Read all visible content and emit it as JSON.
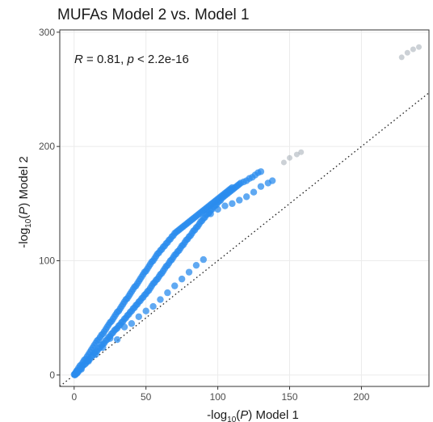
{
  "chart_data": {
    "type": "scatter",
    "title": "MUFAs Model 2 vs. Model 1",
    "xlabel": {
      "prefix": "-log",
      "sub": "10",
      "open": "(",
      "var": "P",
      "close": ")",
      "suffix": " Model 1"
    },
    "ylabel": {
      "prefix": "-log",
      "sub": "10",
      "open": "(",
      "var": "P",
      "close": ")",
      "suffix": " Model 2"
    },
    "annotation": {
      "r_symbol": "R",
      "r_text": " = 0.81, ",
      "p_symbol": "p",
      "p_text": " < 2.2e-16"
    },
    "xlim": [
      -10,
      247
    ],
    "ylim": [
      -10,
      302
    ],
    "x_ticks": [
      0,
      50,
      100,
      150,
      200
    ],
    "y_ticks": [
      0,
      100,
      200,
      300
    ],
    "grid": true,
    "reference_line": {
      "slope": 1,
      "intercept": 0,
      "style": "dotted"
    },
    "point_color": "#2b8cee",
    "faint_point_color": "#9aa3ad",
    "points": [
      [
        0.5,
        1
      ],
      [
        1,
        2
      ],
      [
        1.5,
        3
      ],
      [
        2,
        2
      ],
      [
        2,
        4
      ],
      [
        3,
        4
      ],
      [
        3,
        6
      ],
      [
        4,
        5
      ],
      [
        4,
        8
      ],
      [
        5,
        6
      ],
      [
        5,
        9
      ],
      [
        6,
        8
      ],
      [
        6,
        11
      ],
      [
        7,
        9
      ],
      [
        7,
        13
      ],
      [
        8,
        10
      ],
      [
        8,
        14
      ],
      [
        9,
        12
      ],
      [
        9,
        16
      ],
      [
        10,
        13
      ],
      [
        10,
        18
      ],
      [
        11,
        14
      ],
      [
        11,
        20
      ],
      [
        12,
        16
      ],
      [
        12,
        22
      ],
      [
        13,
        17
      ],
      [
        13,
        24
      ],
      [
        14,
        19
      ],
      [
        14,
        26
      ],
      [
        15,
        20
      ],
      [
        15,
        28
      ],
      [
        16,
        21
      ],
      [
        16,
        30
      ],
      [
        17,
        23
      ],
      [
        17,
        31
      ],
      [
        18,
        24
      ],
      [
        18,
        33
      ],
      [
        19,
        26
      ],
      [
        19,
        35
      ],
      [
        20,
        27
      ],
      [
        20,
        36
      ],
      [
        21,
        28
      ],
      [
        21,
        38
      ],
      [
        22,
        30
      ],
      [
        22,
        40
      ],
      [
        23,
        31
      ],
      [
        23,
        42
      ],
      [
        24,
        33
      ],
      [
        24,
        44
      ],
      [
        25,
        34
      ],
      [
        25,
        46
      ],
      [
        26,
        36
      ],
      [
        26,
        47
      ],
      [
        27,
        37
      ],
      [
        27,
        49
      ],
      [
        28,
        39
      ],
      [
        28,
        51
      ],
      [
        29,
        40
      ],
      [
        29,
        53
      ],
      [
        30,
        41
      ],
      [
        30,
        55
      ],
      [
        31,
        43
      ],
      [
        31,
        56
      ],
      [
        32,
        44
      ],
      [
        32,
        58
      ],
      [
        33,
        46
      ],
      [
        33,
        60
      ],
      [
        34,
        47
      ],
      [
        34,
        62
      ],
      [
        35,
        49
      ],
      [
        35,
        64
      ],
      [
        36,
        50
      ],
      [
        36,
        66
      ],
      [
        37,
        52
      ],
      [
        37,
        67
      ],
      [
        38,
        53
      ],
      [
        38,
        69
      ],
      [
        39,
        55
      ],
      [
        39,
        71
      ],
      [
        40,
        56
      ],
      [
        40,
        73
      ],
      [
        41,
        58
      ],
      [
        41,
        75
      ],
      [
        42,
        59
      ],
      [
        42,
        77
      ],
      [
        43,
        61
      ],
      [
        43,
        78
      ],
      [
        44,
        62
      ],
      [
        44,
        80
      ],
      [
        45,
        64
      ],
      [
        45,
        82
      ],
      [
        46,
        65
      ],
      [
        46,
        84
      ],
      [
        47,
        67
      ],
      [
        47,
        86
      ],
      [
        48,
        68
      ],
      [
        48,
        88
      ],
      [
        49,
        70
      ],
      [
        49,
        90
      ],
      [
        50,
        71
      ],
      [
        50,
        91
      ],
      [
        51,
        73
      ],
      [
        51,
        93
      ],
      [
        52,
        74
      ],
      [
        52,
        95
      ],
      [
        53,
        76
      ],
      [
        53,
        97
      ],
      [
        54,
        78
      ],
      [
        54,
        99
      ],
      [
        55,
        80
      ],
      [
        55,
        100
      ],
      [
        56,
        81
      ],
      [
        56,
        102
      ],
      [
        57,
        83
      ],
      [
        57,
        104
      ],
      [
        58,
        84
      ],
      [
        58,
        106
      ],
      [
        59,
        86
      ],
      [
        59,
        107
      ],
      [
        60,
        88
      ],
      [
        60,
        109
      ],
      [
        61,
        89
      ],
      [
        61,
        110
      ],
      [
        62,
        91
      ],
      [
        62,
        112
      ],
      [
        63,
        93
      ],
      [
        63,
        113
      ],
      [
        64,
        95
      ],
      [
        64,
        115
      ],
      [
        65,
        96
      ],
      [
        65,
        116
      ],
      [
        66,
        98
      ],
      [
        66,
        118
      ],
      [
        67,
        100
      ],
      [
        67,
        119
      ],
      [
        68,
        101
      ],
      [
        68,
        121
      ],
      [
        69,
        103
      ],
      [
        69,
        122
      ],
      [
        70,
        105
      ],
      [
        70,
        124
      ],
      [
        71,
        106
      ],
      [
        71,
        125
      ],
      [
        72,
        108
      ],
      [
        72,
        126
      ],
      [
        73,
        109
      ],
      [
        73,
        127
      ],
      [
        74,
        111
      ],
      [
        74,
        128
      ],
      [
        75,
        113
      ],
      [
        75,
        129
      ],
      [
        76,
        114
      ],
      [
        76,
        130
      ],
      [
        77,
        116
      ],
      [
        77,
        131
      ],
      [
        78,
        118
      ],
      [
        78,
        132
      ],
      [
        79,
        119
      ],
      [
        79,
        133
      ],
      [
        80,
        121
      ],
      [
        80,
        134
      ],
      [
        81,
        122
      ],
      [
        81,
        135
      ],
      [
        82,
        124
      ],
      [
        82,
        136
      ],
      [
        83,
        126
      ],
      [
        83,
        137
      ],
      [
        84,
        127
      ],
      [
        84,
        138
      ],
      [
        85,
        129
      ],
      [
        85,
        139
      ],
      [
        86,
        130
      ],
      [
        86,
        140
      ],
      [
        87,
        132
      ],
      [
        87,
        141
      ],
      [
        88,
        134
      ],
      [
        88,
        142
      ],
      [
        89,
        135
      ],
      [
        89,
        143
      ],
      [
        90,
        137
      ],
      [
        90,
        144
      ],
      [
        91,
        138
      ],
      [
        91,
        145
      ],
      [
        92,
        140
      ],
      [
        92,
        146
      ],
      [
        93,
        141
      ],
      [
        93,
        147
      ],
      [
        94,
        142
      ],
      [
        94,
        148
      ],
      [
        95,
        144
      ],
      [
        95,
        149
      ],
      [
        96,
        145
      ],
      [
        96,
        150
      ],
      [
        97,
        147
      ],
      [
        97,
        151
      ],
      [
        98,
        148
      ],
      [
        98,
        152
      ],
      [
        99,
        149
      ],
      [
        99,
        153
      ],
      [
        100,
        151
      ],
      [
        100,
        154
      ],
      [
        101,
        152
      ],
      [
        101,
        155
      ],
      [
        102,
        153
      ],
      [
        102,
        156
      ],
      [
        103,
        155
      ],
      [
        103,
        157
      ],
      [
        104,
        156
      ],
      [
        104,
        158
      ],
      [
        105,
        157
      ],
      [
        105,
        159
      ],
      [
        106,
        158
      ],
      [
        106,
        160
      ],
      [
        107,
        159
      ],
      [
        107,
        161
      ],
      [
        108,
        160
      ],
      [
        108,
        162
      ],
      [
        109,
        161
      ],
      [
        109,
        163
      ],
      [
        110,
        162
      ],
      [
        110,
        164
      ],
      [
        111,
        163
      ],
      [
        112,
        164
      ],
      [
        113,
        165
      ],
      [
        114,
        166
      ],
      [
        115,
        167
      ],
      [
        116,
        168
      ],
      [
        118,
        169
      ],
      [
        120,
        170
      ],
      [
        122,
        172
      ],
      [
        124,
        173
      ],
      [
        126,
        175
      ],
      [
        128,
        177
      ],
      [
        130,
        178
      ],
      [
        30,
        31
      ],
      [
        40,
        45
      ],
      [
        50,
        56
      ],
      [
        55,
        60
      ],
      [
        60,
        66
      ],
      [
        65,
        72
      ],
      [
        70,
        78
      ],
      [
        75,
        84
      ],
      [
        80,
        90
      ],
      [
        85,
        96
      ],
      [
        90,
        101
      ],
      [
        25,
        32
      ],
      [
        35,
        42
      ],
      [
        45,
        51
      ],
      [
        15,
        18
      ],
      [
        20,
        24
      ],
      [
        10,
        12
      ],
      [
        5,
        5
      ],
      [
        3,
        3
      ],
      [
        2,
        1.5
      ],
      [
        1,
        1
      ],
      [
        0,
        0.5
      ],
      [
        0.5,
        0
      ],
      [
        1,
        0.5
      ],
      [
        110,
        150
      ],
      [
        115,
        153
      ],
      [
        120,
        156
      ],
      [
        125,
        160
      ],
      [
        130,
        165
      ],
      [
        135,
        168
      ],
      [
        138,
        170
      ],
      [
        100,
        145
      ],
      [
        95,
        141
      ],
      [
        105,
        148
      ]
    ],
    "faint_points": [
      [
        146,
        186
      ],
      [
        150,
        190
      ],
      [
        155,
        193
      ],
      [
        158,
        195
      ],
      [
        228,
        278
      ],
      [
        232,
        282
      ],
      [
        236,
        285
      ],
      [
        240,
        287
      ]
    ]
  }
}
